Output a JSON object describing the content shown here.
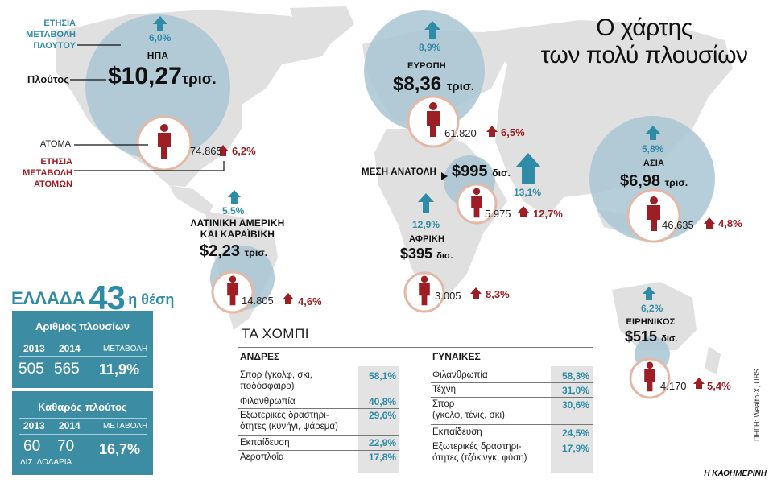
{
  "title": [
    "Ο χάρτης",
    "των πολύ πλουσίων"
  ],
  "side_labels": {
    "wealth_change": [
      "ΕΤΗΣΙΑ",
      "ΜΕΤΑΒΟΛΗ",
      "ΠΛΟΥΤΟΥ"
    ],
    "wealth": "Πλούτος",
    "people": "ΑΤΟΜΑ",
    "people_change": [
      "ΕΤΗΣΙΑ",
      "ΜΕΤΑΒΟΛΗ",
      "ΑΤΟΜΩΝ"
    ]
  },
  "regions": {
    "usa": {
      "name": "ΗΠΑ",
      "wealth": "$10,27",
      "unit": "τρισ.",
      "wealth_change": "6,0%",
      "people": "74.865",
      "people_change": "6,2%"
    },
    "europe": {
      "name": "ΕΥΡΩΠΗ",
      "wealth": "$8,36",
      "unit": "τρισ.",
      "wealth_change": "8,9%",
      "people": "61.820",
      "people_change": "6,5%"
    },
    "mideast": {
      "name": "ΜΕΣΗ ΑΝΑΤΟΛΗ",
      "wealth": "$995",
      "unit": "δισ.",
      "wealth_change": "13,1%",
      "people": "5.975",
      "people_change": "12,7%"
    },
    "asia": {
      "name": "ΑΣΙΑ",
      "wealth": "$6,98",
      "unit": "τρισ.",
      "wealth_change": "5,8%",
      "people": "46.635",
      "people_change": "4,8%"
    },
    "latam": {
      "name": [
        "ΛΑΤΙΝΙΚΗ ΑΜΕΡΙΚΗ",
        "ΚΑΙ ΚΑΡΑΪΒΙΚΗ"
      ],
      "wealth": "$2,23",
      "unit": "τρισ.",
      "wealth_change": "5,5%",
      "people": "14.805",
      "people_change": "4,6%"
    },
    "africa": {
      "name": "ΑΦΡΙΚΗ",
      "wealth": "$395",
      "unit": "δισ.",
      "wealth_change": "12,9%",
      "people": "3.005",
      "people_change": "8,3%"
    },
    "pacific": {
      "name": "ΕΙΡΗΝΙΚΟΣ",
      "wealth": "$515",
      "unit": "δισ.",
      "wealth_change": "6,2%",
      "people": "4.170",
      "people_change": "5,4%"
    }
  },
  "greece": {
    "country": "ΕΛΛΑΔΑ",
    "rank_number": "43",
    "rank_suffix": "η θέση",
    "count_box": {
      "title": "Αριθμός πλουσίων",
      "year1": "2013",
      "year2": "2014",
      "change_label": "ΜΕΤΑΒΟΛΗ",
      "v1": "505",
      "v2": "565",
      "change": "11,9%"
    },
    "wealth_box": {
      "title": "Καθαρός πλούτος",
      "year1": "2013",
      "year2": "2014",
      "change_label": "ΜΕΤΑΒΟΛΗ",
      "v1": "60",
      "v2": "70",
      "unit": "ΔΙΣ. ΔΟΛΑΡΙΑ",
      "change": "16,7%"
    }
  },
  "hobbies": {
    "title": "ΤΑ ΧΟΜΠΙ",
    "men": {
      "label": "ΑΝΔΡΕΣ",
      "rows": [
        {
          "text": [
            "Σπορ (γκολφ, σκι,",
            "ποδόσφαιρο)"
          ],
          "value": "58,1%"
        },
        {
          "text": [
            "Φιλανθρωπία"
          ],
          "value": "40,8%"
        },
        {
          "text": [
            "Εξωτερικές δραστηρι-",
            "ότητες (κυνήγι, ψάρεμα)"
          ],
          "value": "29,6%"
        },
        {
          "text": [
            "Εκπαίδευση"
          ],
          "value": "22,9%"
        },
        {
          "text": [
            "Αεροπλοΐα"
          ],
          "value": "17,8%"
        }
      ]
    },
    "women": {
      "label": "ΓΥΝΑΙΚΕΣ",
      "rows": [
        {
          "text": [
            "Φιλανθρωπία"
          ],
          "value": "58,3%"
        },
        {
          "text": [
            "Τέχνη"
          ],
          "value": "31,0%"
        },
        {
          "text": [
            "Σπορ",
            "(γκολφ, τένις, σκι)"
          ],
          "value": "30,6%"
        },
        {
          "text": [
            "Εκπαίδευση"
          ],
          "value": "24,5%"
        },
        {
          "text": [
            "Εξωτερικές δραστηρι-",
            "ότητες (τζόκινγκ, φύση)"
          ],
          "value": "17,9%"
        }
      ]
    }
  },
  "source": "ΠΗΓΗ: Wealth-X, UBS",
  "footer": "Η ΚΑΘΗΜΕΡΙΝΗ",
  "colors": {
    "teal": "#2f8ca6",
    "red": "#9d1e25",
    "bubble": "#a9c6d3",
    "land": "#dfdfdf",
    "ring": "#e3b8a6"
  }
}
